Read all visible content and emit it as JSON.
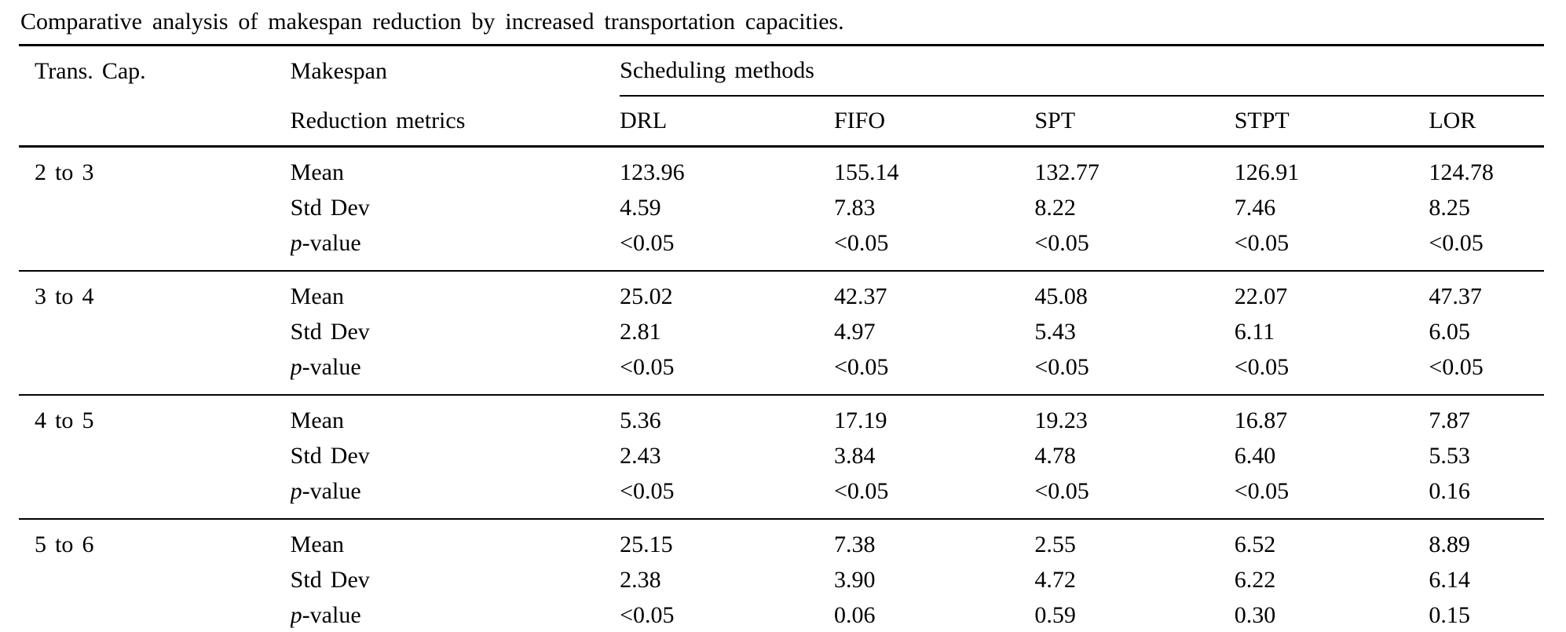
{
  "caption": "Comparative analysis of makespan reduction by increased transportation capacities.",
  "table": {
    "col1_header": "Trans. Cap.",
    "col2_header_line1": "Makespan",
    "col2_header_line2": "Reduction metrics",
    "group_header": "Scheduling methods",
    "methods": [
      "DRL",
      "FIFO",
      "SPT",
      "STPT",
      "LOR"
    ],
    "groups": [
      {
        "capacity": "2 to 3",
        "rows": [
          {
            "metric_text": "Mean",
            "values": [
              "123.96",
              "155.14",
              "132.77",
              "126.91",
              "124.78"
            ]
          },
          {
            "metric_text": "Std Dev",
            "values": [
              "4.59",
              "7.83",
              "8.22",
              "7.46",
              "8.25"
            ]
          },
          {
            "metric_italic": "p",
            "metric_text": "-value",
            "values": [
              "<0.05",
              "<0.05",
              "<0.05",
              "<0.05",
              "<0.05"
            ]
          }
        ]
      },
      {
        "capacity": "3 to 4",
        "rows": [
          {
            "metric_text": "Mean",
            "values": [
              "25.02",
              "42.37",
              "45.08",
              "22.07",
              "47.37"
            ]
          },
          {
            "metric_text": "Std Dev",
            "values": [
              "2.81",
              "4.97",
              "5.43",
              "6.11",
              "6.05"
            ]
          },
          {
            "metric_italic": "p",
            "metric_text": "-value",
            "values": [
              "<0.05",
              "<0.05",
              "<0.05",
              "<0.05",
              "<0.05"
            ]
          }
        ]
      },
      {
        "capacity": "4 to 5",
        "rows": [
          {
            "metric_text": "Mean",
            "values": [
              "5.36",
              "17.19",
              "19.23",
              "16.87",
              "7.87"
            ]
          },
          {
            "metric_text": "Std Dev",
            "values": [
              "2.43",
              "3.84",
              "4.78",
              "6.40",
              "5.53"
            ]
          },
          {
            "metric_italic": "p",
            "metric_text": "-value",
            "values": [
              "<0.05",
              "<0.05",
              "<0.05",
              "<0.05",
              "0.16"
            ]
          }
        ]
      },
      {
        "capacity": "5 to 6",
        "rows": [
          {
            "metric_text": "Mean",
            "values": [
              "25.15",
              "7.38",
              "2.55",
              "6.52",
              "8.89"
            ]
          },
          {
            "metric_text": "Std Dev",
            "values": [
              "2.38",
              "3.90",
              "4.72",
              "6.22",
              "6.14"
            ]
          },
          {
            "metric_italic": "p",
            "metric_text": "-value",
            "values": [
              "<0.05",
              "0.06",
              "0.59",
              "0.30",
              "0.15"
            ]
          }
        ]
      }
    ]
  }
}
